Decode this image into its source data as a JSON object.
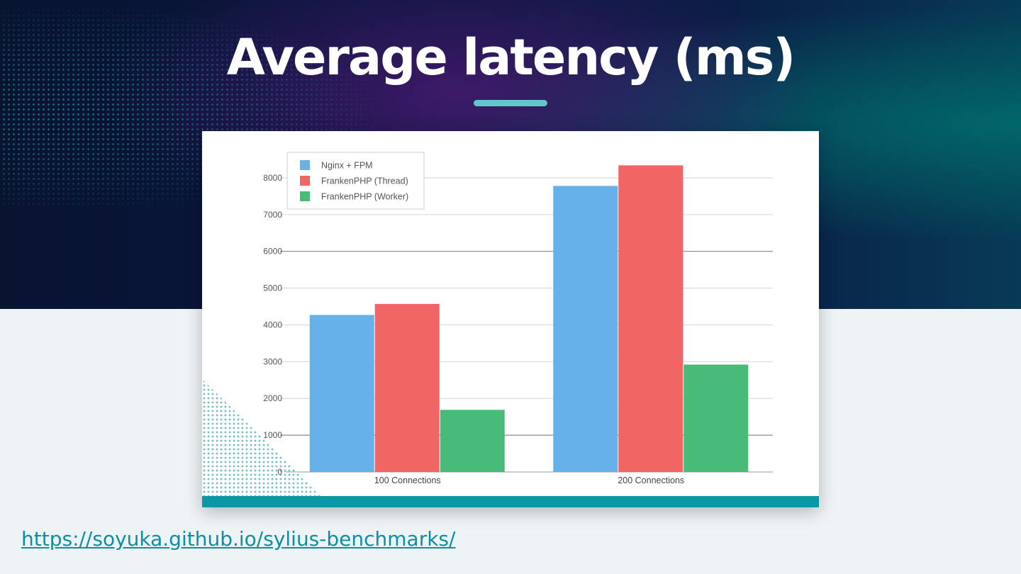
{
  "slide": {
    "title": "Average latency (ms)",
    "link": "https://soyuka.github.io/sylius-benchmarks/"
  },
  "chart_data": {
    "type": "bar",
    "categories": [
      "100 Connections",
      "200 Connections"
    ],
    "series": [
      {
        "name": "Nginx + FPM",
        "values": [
          4270,
          7780
        ],
        "color": "#65b1e8"
      },
      {
        "name": "FrankenPHP (Thread)",
        "values": [
          4570,
          8340
        ],
        "color": "#f26565"
      },
      {
        "name": "FrankenPHP (Worker)",
        "values": [
          1690,
          2920
        ],
        "color": "#49bb78"
      }
    ],
    "yticks": [
      0,
      1000,
      2000,
      3000,
      4000,
      5000,
      6000,
      7000,
      8000
    ],
    "ylim": [
      0,
      8500
    ],
    "grid": true,
    "legend": "top-left"
  }
}
